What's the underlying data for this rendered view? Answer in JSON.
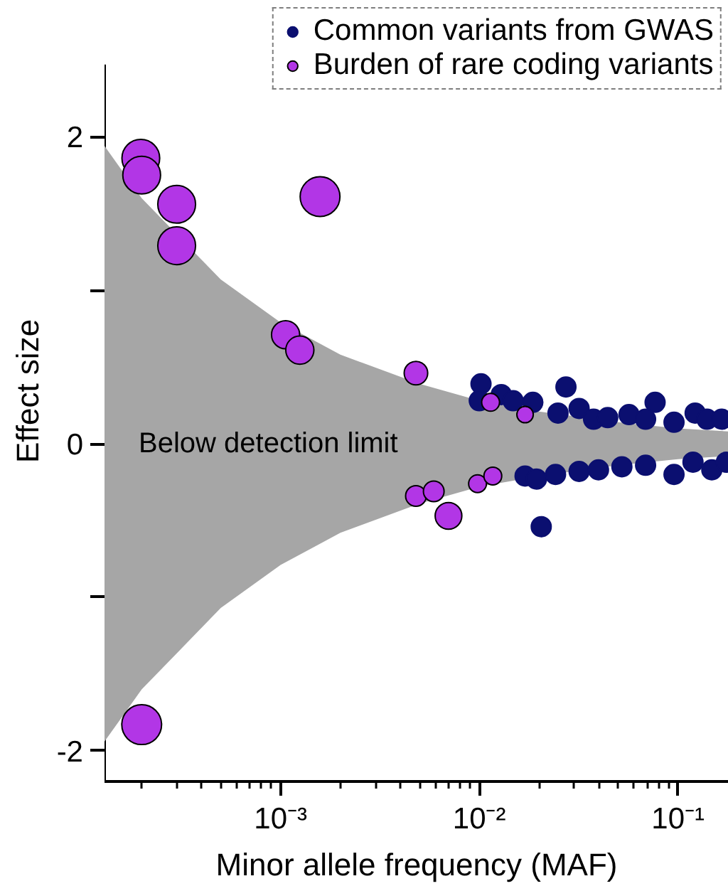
{
  "chart_data": {
    "type": "bubble",
    "xlabel": "Minor allele frequency (MAF)",
    "ylabel": "Effect size",
    "log": "x",
    "xlim": [
      0.00013,
      0.18
    ],
    "ylim": [
      -2.2,
      2.47
    ],
    "xticks": [
      {
        "value": 0.0002,
        "label": null
      },
      {
        "value": 0.0003,
        "label": null
      },
      {
        "value": 0.0004,
        "label": null
      },
      {
        "value": 0.0005,
        "label": null
      },
      {
        "value": 0.0006,
        "label": null
      },
      {
        "value": 0.0007,
        "label": null
      },
      {
        "value": 0.0008,
        "label": null
      },
      {
        "value": 0.0009,
        "label": null
      },
      {
        "value": 0.001,
        "label": "10⁻³"
      },
      {
        "value": 0.002,
        "label": null
      },
      {
        "value": 0.003,
        "label": null
      },
      {
        "value": 0.004,
        "label": null
      },
      {
        "value": 0.005,
        "label": null
      },
      {
        "value": 0.006,
        "label": null
      },
      {
        "value": 0.007,
        "label": null
      },
      {
        "value": 0.008,
        "label": null
      },
      {
        "value": 0.009,
        "label": null
      },
      {
        "value": 0.01,
        "label": "10⁻²"
      },
      {
        "value": 0.02,
        "label": null
      },
      {
        "value": 0.03,
        "label": null
      },
      {
        "value": 0.04,
        "label": null
      },
      {
        "value": 0.05,
        "label": null
      },
      {
        "value": 0.06,
        "label": null
      },
      {
        "value": 0.07,
        "label": null
      },
      {
        "value": 0.08,
        "label": null
      },
      {
        "value": 0.09,
        "label": null
      },
      {
        "value": 0.1,
        "label": "10⁻¹"
      }
    ],
    "yticks": [
      -2,
      {
        "value": -1,
        "label": null
      },
      0,
      {
        "value": 1,
        "label": null
      },
      2
    ],
    "grid": false,
    "legend": "top",
    "annotations": [
      "Below detection limit"
    ],
    "series": [
      {
        "type": "area",
        "color": "#a6a6a6",
        "x": [
          0.00013,
          0.0002,
          0.0005,
          0.001,
          0.002,
          0.005,
          0.01,
          0.02,
          0.05,
          0.1,
          0.18
        ],
        "values": [
          1.94,
          1.6,
          1.07,
          0.79,
          0.58,
          0.39,
          0.28,
          0.21,
          0.14,
          0.1,
          0.08
        ]
      },
      {
        "type": "area",
        "color": "#a6a6a6",
        "x": [
          0.00013,
          0.0002,
          0.0005,
          0.001,
          0.002,
          0.005,
          0.01,
          0.02,
          0.05,
          0.1,
          0.18
        ],
        "values": [
          -1.94,
          -1.6,
          -1.07,
          -0.79,
          -0.58,
          -0.39,
          -0.28,
          -0.21,
          -0.14,
          -0.1,
          -0.08
        ]
      },
      {
        "type": "scatter",
        "marker": "circle",
        "name": "Common variants from GWAS",
        "color": "#0b0f70",
        "x": [
          0.0102,
          0.01,
          0.0129,
          0.0186,
          0.0273,
          0.0249,
          0.0318,
          0.0376,
          0.0443,
          0.0567,
          0.0767,
          0.0687,
          0.0955,
          0.122,
          0.14,
          0.166,
          0.0148,
          0.017,
          0.0194,
          0.0205,
          0.0242,
          0.0318,
          0.0398,
          0.0522,
          0.0687,
          0.0955,
          0.119,
          0.148,
          0.175
        ],
        "values": [
          0.39,
          0.28,
          0.32,
          0.27,
          0.37,
          0.2,
          0.23,
          0.16,
          0.17,
          0.19,
          0.27,
          0.16,
          0.14,
          0.2,
          0.16,
          0.16,
          0.28,
          -0.21,
          -0.23,
          -0.54,
          -0.2,
          -0.18,
          -0.17,
          -0.15,
          -0.14,
          -0.2,
          -0.12,
          -0.17,
          -0.12
        ]
      },
      {
        "type": "bubble",
        "marker": "circle",
        "name": "Burden of rare coding variants",
        "color": "#b236e6",
        "x": [
          0.000198,
          0.0002,
          0.0003,
          0.0003,
          0.00158,
          0.00106,
          0.00125,
          0.0048,
          0.0114,
          0.017,
          0.0048,
          0.0059,
          0.007,
          0.0098,
          0.0117,
          0.0002
        ],
        "values": [
          1.86,
          1.75,
          1.56,
          1.29,
          1.61,
          0.71,
          0.61,
          0.46,
          0.27,
          0.19,
          -0.34,
          -0.31,
          -0.47,
          -0.26,
          -0.21,
          -1.83
        ],
        "sizes": [
          0.9,
          0.9,
          0.9,
          0.9,
          1.0,
          0.5,
          0.5,
          0.35,
          0.2,
          0.17,
          0.27,
          0.27,
          0.45,
          0.2,
          0.2,
          1.0
        ]
      }
    ]
  }
}
